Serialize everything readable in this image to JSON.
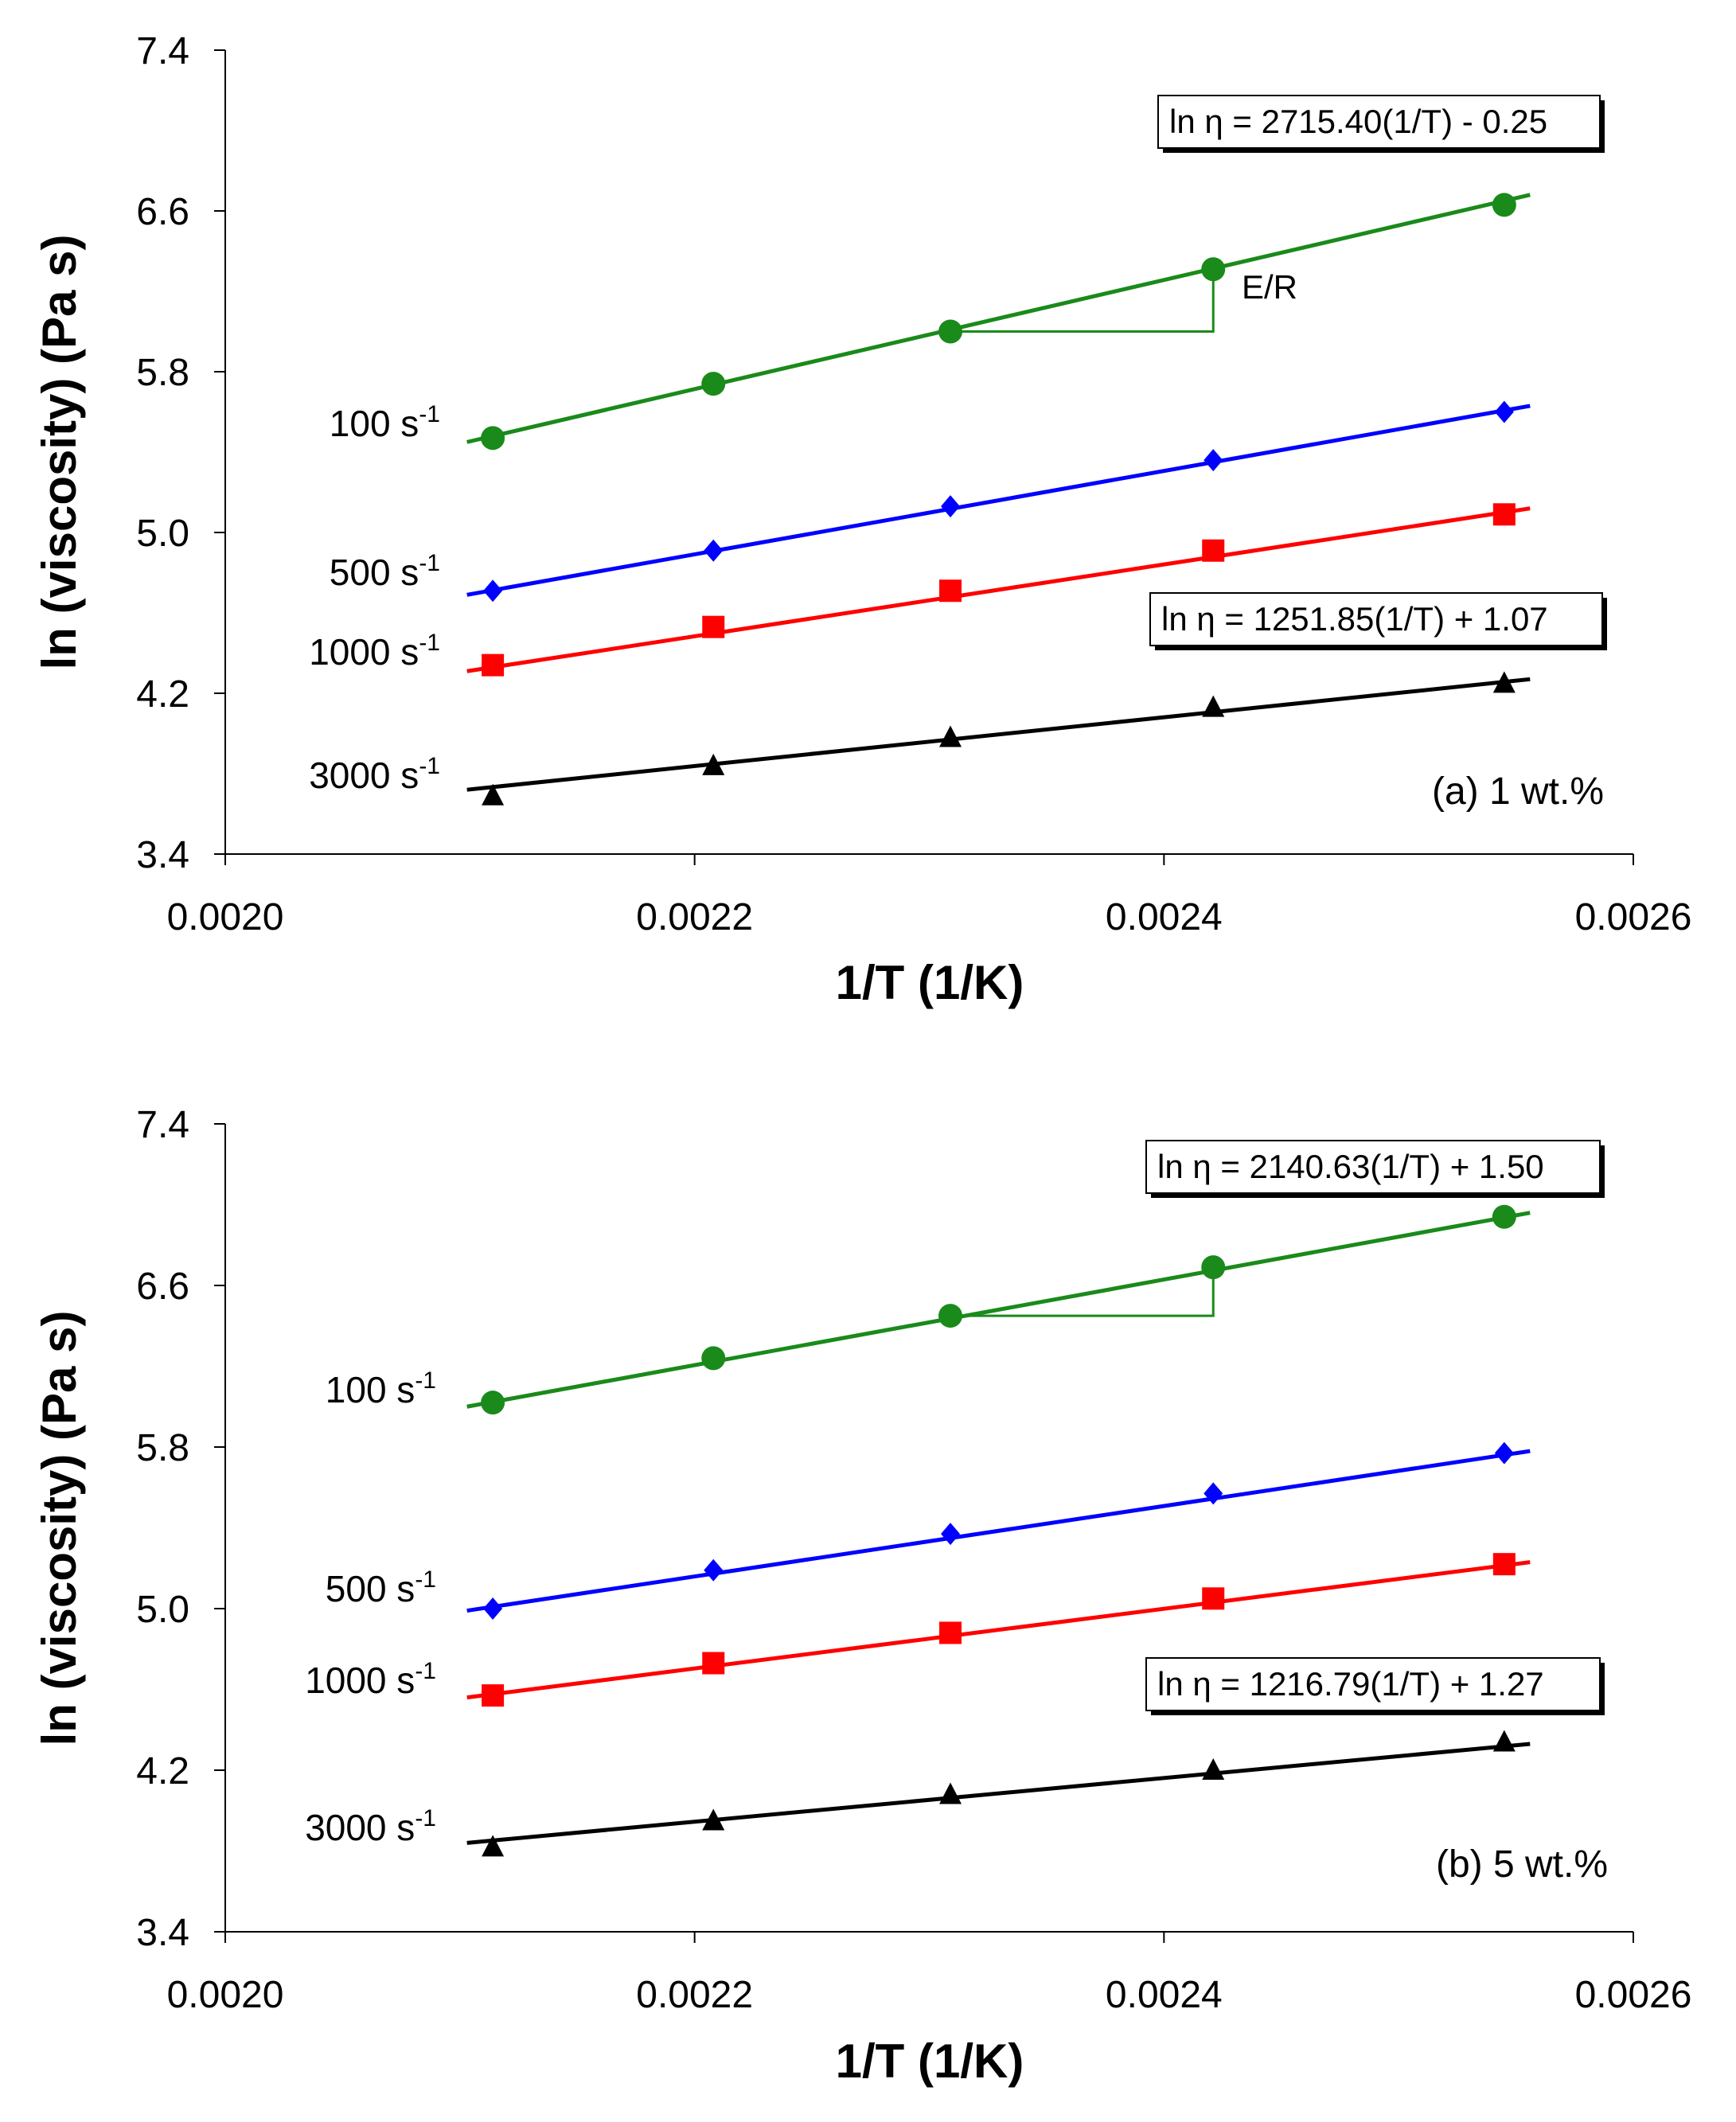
{
  "chart_data": [
    {
      "type": "line",
      "panel_label": "(a) 1 wt.%",
      "xlabel": "1/T (1/K)",
      "ylabel": "ln (viscosity) (Pa s)",
      "xlim": [
        0.002,
        0.0026
      ],
      "ylim": [
        3.4,
        7.4
      ],
      "xticks": [
        "0.0020",
        "0.0022",
        "0.0024",
        "0.0026"
      ],
      "yticks": [
        "3.4",
        "4.2",
        "5.0",
        "5.8",
        "6.6",
        "7.4"
      ],
      "x": [
        0.002114,
        0.002208,
        0.002309,
        0.002421,
        0.002545
      ],
      "fit_x_range": [
        0.002103,
        0.002556
      ],
      "series": [
        {
          "name": "100 s",
          "sup": "-1",
          "color": "#1a8a1a",
          "marker": "circle",
          "values": [
            5.47,
            5.74,
            6.0,
            6.31,
            6.63
          ],
          "fit_y": [
            5.45,
            6.68
          ]
        },
        {
          "name": "500 s",
          "sup": "-1",
          "color": "#0000ff",
          "marker": "diamond",
          "values": [
            4.71,
            4.91,
            5.13,
            5.36,
            5.6
          ],
          "fit_y": [
            4.69,
            5.63
          ]
        },
        {
          "name": "1000 s",
          "sup": "-1",
          "color": "#ff0000",
          "marker": "square",
          "values": [
            4.34,
            4.53,
            4.71,
            4.91,
            5.09
          ],
          "fit_y": [
            4.31,
            5.12
          ]
        },
        {
          "name": "3000 s",
          "sup": "-1",
          "color": "#000000",
          "marker": "triangle",
          "values": [
            3.69,
            3.84,
            3.98,
            4.13,
            4.25
          ],
          "fit_y": [
            3.72,
            4.27
          ]
        }
      ],
      "annotations": [
        {
          "text": "ln η = 2715.40(1/T) - 0.25"
        },
        {
          "text": "ln η = 1251.85(1/T) + 1.07"
        }
      ],
      "slope_label": "E/R"
    },
    {
      "type": "line",
      "panel_label": "(b) 5 wt.%",
      "xlabel": "1/T (1/K)",
      "ylabel": "ln (viscosity) (Pa s)",
      "xlim": [
        0.002,
        0.0026
      ],
      "ylim": [
        3.4,
        7.4
      ],
      "xticks": [
        "0.0020",
        "0.0022",
        "0.0024",
        "0.0026"
      ],
      "yticks": [
        "3.4",
        "4.2",
        "5.0",
        "5.8",
        "6.6",
        "7.4"
      ],
      "x": [
        0.002114,
        0.002208,
        0.002309,
        0.002421,
        0.002545
      ],
      "fit_x_range": [
        0.002103,
        0.002556
      ],
      "series": [
        {
          "name": "100 s",
          "sup": "-1",
          "color": "#1a8a1a",
          "marker": "circle",
          "values": [
            6.02,
            6.24,
            6.45,
            6.69,
            6.94
          ],
          "fit_y": [
            6.0,
            6.96
          ]
        },
        {
          "name": "500 s",
          "sup": "-1",
          "color": "#0000ff",
          "marker": "diamond",
          "values": [
            5.0,
            5.19,
            5.37,
            5.57,
            5.77
          ],
          "fit_y": [
            4.99,
            5.78
          ]
        },
        {
          "name": "1000 s",
          "sup": "-1",
          "color": "#ff0000",
          "marker": "square",
          "values": [
            4.57,
            4.73,
            4.88,
            5.05,
            5.22
          ],
          "fit_y": [
            4.56,
            5.23
          ]
        },
        {
          "name": "3000 s",
          "sup": "-1",
          "color": "#000000",
          "marker": "triangle",
          "values": [
            3.82,
            3.95,
            4.08,
            4.2,
            4.34
          ],
          "fit_y": [
            3.84,
            4.33
          ]
        }
      ],
      "annotations": [
        {
          "text": "ln η = 2140.63(1/T) + 1.50"
        },
        {
          "text": "ln η = 1216.79(1/T) + 1.27"
        }
      ]
    }
  ]
}
